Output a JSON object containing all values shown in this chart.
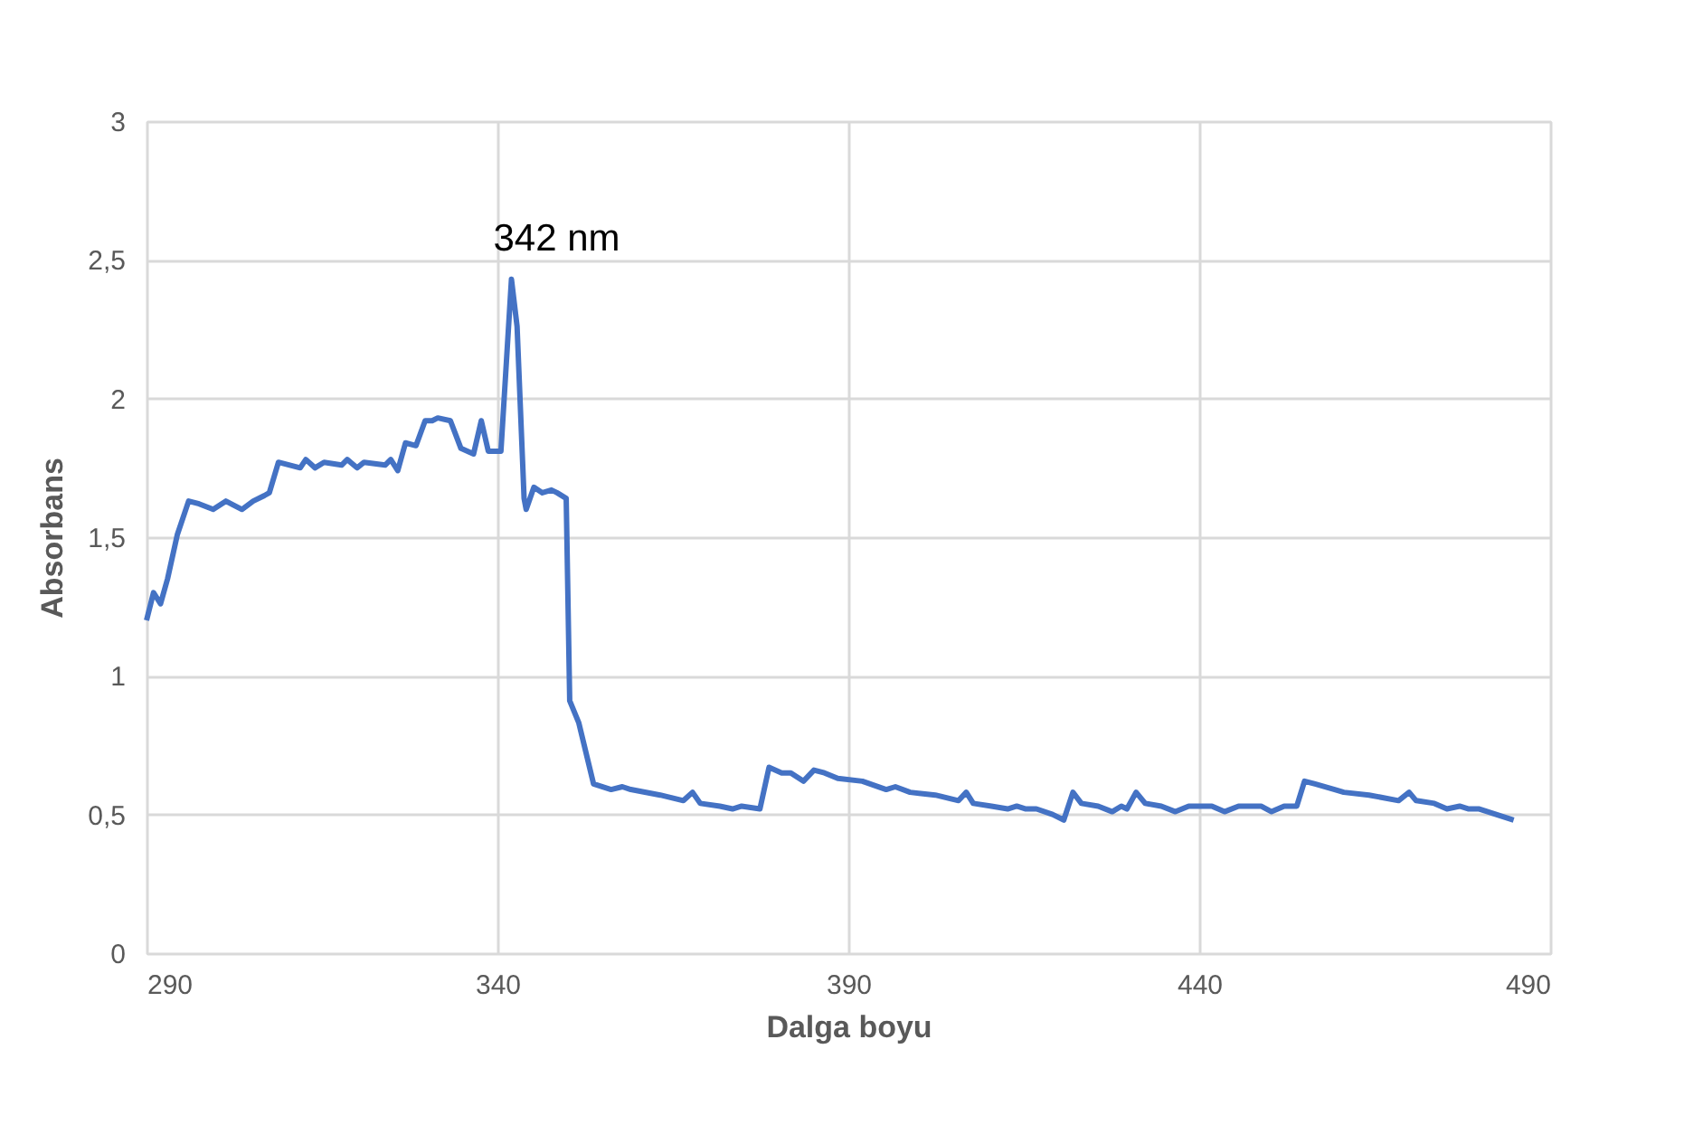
{
  "chart_data": {
    "type": "line",
    "xlabel": "Dalga boyu",
    "ylabel": "Absorbans",
    "xlim": [
      290,
      490
    ],
    "xticks": [
      290,
      340,
      390,
      440,
      490
    ],
    "ylim": [
      0,
      3
    ],
    "yticks": [
      {
        "value": 0,
        "label": "0"
      },
      {
        "value": 0.5,
        "label": "0,5"
      },
      {
        "value": 1,
        "label": "1"
      },
      {
        "value": 1.5,
        "label": "1,5"
      },
      {
        "value": 2,
        "label": "2"
      },
      {
        "value": 2.5,
        "label": "2,5"
      },
      {
        "value": 3,
        "label": "3"
      }
    ],
    "grid": true,
    "marker": "none",
    "line_style": "solid",
    "annotations": [
      {
        "text": "342 nm",
        "x": 342,
        "y": 2.43
      }
    ],
    "series": [
      {
        "color": "#4472c4",
        "x": [
          290,
          291,
          292,
          293,
          294.4,
          296,
          297.5,
          299.5,
          301.3,
          303.6,
          305.2,
          306.8,
          307.5,
          308.8,
          311.9,
          312.7,
          314,
          315.3,
          317.8,
          318.6,
          320,
          321,
          324,
          324.8,
          325.8,
          326.9,
          328.4,
          329.7,
          330.7,
          331.5,
          333.3,
          334.8,
          336.6,
          337.7,
          338.7,
          340.5,
          342,
          342.8,
          343.8,
          344.1,
          345.2,
          346.4,
          347.7,
          348.5,
          349.8,
          350.3,
          351.6,
          353.7,
          356.2,
          357.8,
          359,
          363.2,
          366.5,
          367.8,
          368.9,
          371.7,
          373.5,
          374.8,
          377.4,
          378.7,
          380.5,
          381.8,
          383.6,
          385.1,
          386.6,
          388.5,
          392,
          395.4,
          396.7,
          398.8,
          402.4,
          405.7,
          406.8,
          407.8,
          410.4,
          412.7,
          414,
          415.3,
          416.8,
          419.1,
          420.7,
          422,
          423.2,
          425.6,
          427.6,
          428.9,
          429.7,
          431,
          432.3,
          434.6,
          436.6,
          438.5,
          441.8,
          443.6,
          445.6,
          448.8,
          450.3,
          452.1,
          453.9,
          455,
          456.5,
          459.3,
          460.6,
          464.2,
          468.4,
          469.9,
          470.9,
          473.5,
          475.3,
          477.1,
          478.4,
          479.9,
          482.3,
          484.8
        ],
        "values": [
          1.2,
          1.3,
          1.26,
          1.35,
          1.51,
          1.63,
          1.62,
          1.6,
          1.63,
          1.6,
          1.63,
          1.65,
          1.66,
          1.77,
          1.75,
          1.78,
          1.75,
          1.77,
          1.76,
          1.78,
          1.75,
          1.77,
          1.76,
          1.78,
          1.74,
          1.84,
          1.83,
          1.92,
          1.92,
          1.93,
          1.92,
          1.82,
          1.8,
          1.92,
          1.81,
          1.81,
          2.43,
          2.26,
          1.64,
          1.6,
          1.68,
          1.66,
          1.67,
          1.66,
          1.64,
          0.91,
          0.83,
          0.61,
          0.59,
          0.6,
          0.59,
          0.57,
          0.55,
          0.58,
          0.54,
          0.53,
          0.52,
          0.53,
          0.52,
          0.67,
          0.65,
          0.65,
          0.62,
          0.66,
          0.65,
          0.63,
          0.62,
          0.59,
          0.6,
          0.58,
          0.57,
          0.55,
          0.58,
          0.54,
          0.53,
          0.52,
          0.53,
          0.52,
          0.52,
          0.5,
          0.48,
          0.58,
          0.54,
          0.53,
          0.51,
          0.53,
          0.52,
          0.58,
          0.54,
          0.53,
          0.51,
          0.53,
          0.53,
          0.51,
          0.53,
          0.53,
          0.51,
          0.53,
          0.53,
          0.62,
          0.61,
          0.59,
          0.58,
          0.57,
          0.55,
          0.58,
          0.55,
          0.54,
          0.52,
          0.53,
          0.52,
          0.52,
          0.5,
          0.48
        ]
      }
    ]
  }
}
